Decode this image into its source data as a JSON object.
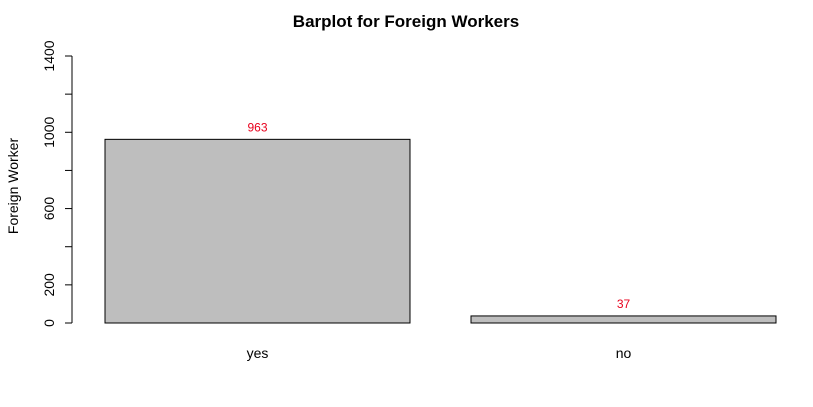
{
  "chart_data": {
    "type": "bar",
    "title": "Barplot for Foreign Workers",
    "xlabel": "",
    "ylabel": "Foreign Worker",
    "categories": [
      "yes",
      "no"
    ],
    "values": [
      963,
      37
    ],
    "value_labels": [
      "963",
      "37"
    ],
    "ylim": [
      0,
      1400
    ],
    "yticks": [
      0,
      200,
      400,
      600,
      800,
      1000,
      1200,
      1400
    ],
    "ytick_labels": [
      "0",
      "200",
      "",
      "600",
      "",
      "1000",
      "",
      "1400"
    ],
    "grid": false,
    "legend": "none",
    "colors": {
      "bar_fill": "#bebebe",
      "bar_stroke": "#000000",
      "value_label": "#e8001c",
      "text": "#000000"
    }
  }
}
